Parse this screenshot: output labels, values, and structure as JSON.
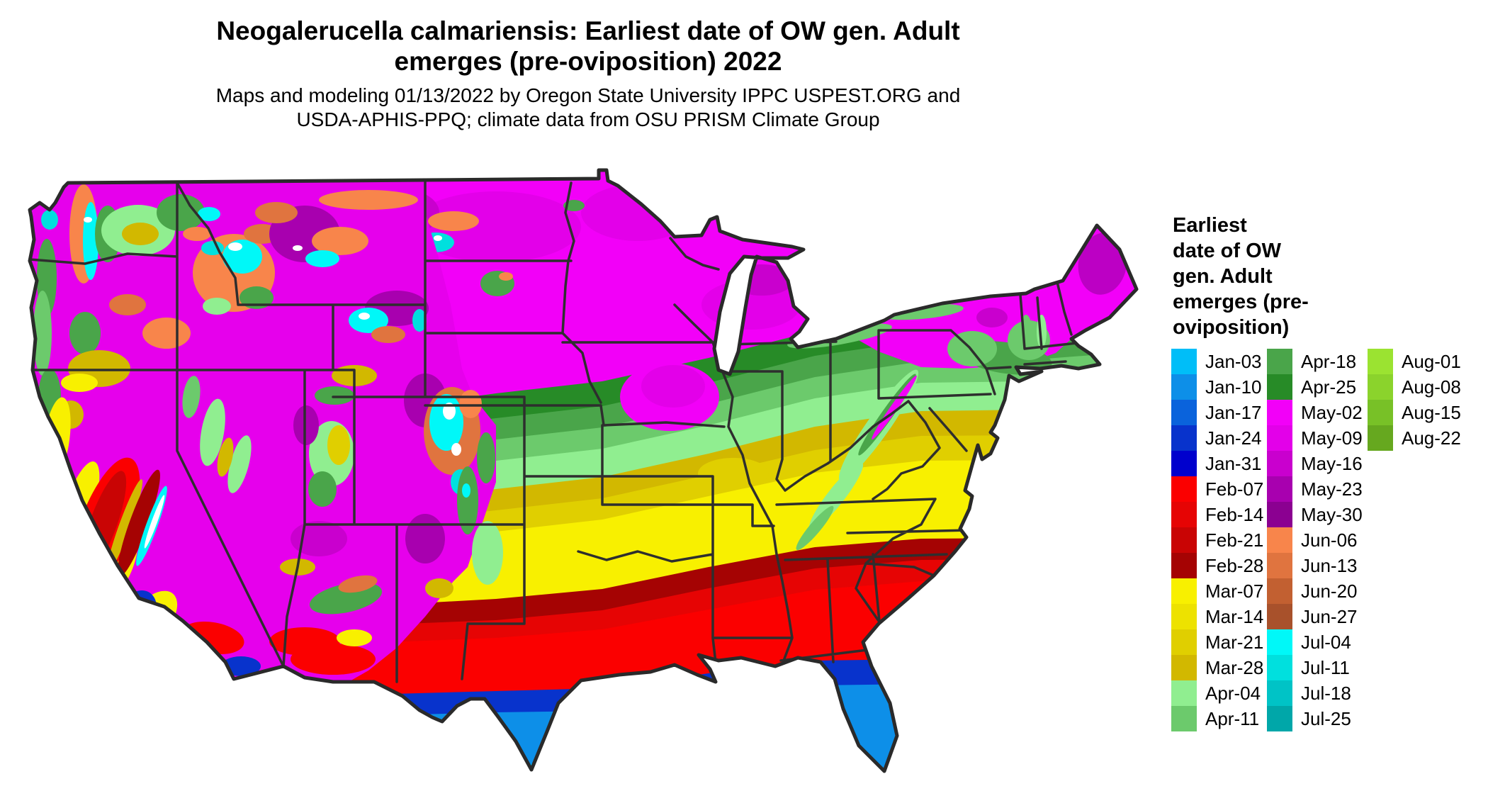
{
  "title": {
    "line1": "Neogalerucella calmariensis: Earliest date of OW gen. Adult",
    "line2": "emerges (pre-oviposition) 2022"
  },
  "subtitle": {
    "line1": "Maps and modeling 01/13/2022 by Oregon State University IPPC USPEST.ORG and",
    "line2": "USDA-APHIS-PPQ; climate data from OSU PRISM Climate Group"
  },
  "legend": {
    "title": "Earliest\ndate of OW\ngen. Adult\nemerges (pre-\noviposition)",
    "columns": [
      [
        {
          "label": "Jan-03",
          "key": "jan03"
        },
        {
          "label": "Jan-10",
          "key": "jan10"
        },
        {
          "label": "Jan-17",
          "key": "jan17"
        },
        {
          "label": "Jan-24",
          "key": "jan24"
        },
        {
          "label": "Jan-31",
          "key": "jan31"
        },
        {
          "label": "Feb-07",
          "key": "feb07"
        },
        {
          "label": "Feb-14",
          "key": "feb14"
        },
        {
          "label": "Feb-21",
          "key": "feb21"
        },
        {
          "label": "Feb-28",
          "key": "feb28"
        },
        {
          "label": "Mar-07",
          "key": "mar07"
        },
        {
          "label": "Mar-14",
          "key": "mar14"
        },
        {
          "label": "Mar-21",
          "key": "mar21"
        },
        {
          "label": "Mar-28",
          "key": "mar28"
        },
        {
          "label": "Apr-04",
          "key": "apr04"
        },
        {
          "label": "Apr-11",
          "key": "apr11"
        }
      ],
      [
        {
          "label": "Apr-18",
          "key": "apr18"
        },
        {
          "label": "Apr-25",
          "key": "apr25"
        },
        {
          "label": "May-02",
          "key": "may02"
        },
        {
          "label": "May-09",
          "key": "may09"
        },
        {
          "label": "May-16",
          "key": "may16"
        },
        {
          "label": "May-23",
          "key": "may23"
        },
        {
          "label": "May-30",
          "key": "may30"
        },
        {
          "label": "Jun-06",
          "key": "jun06"
        },
        {
          "label": "Jun-13",
          "key": "jun13"
        },
        {
          "label": "Jun-20",
          "key": "jun20"
        },
        {
          "label": "Jun-27",
          "key": "jun27"
        },
        {
          "label": "Jul-04",
          "key": "jul04"
        },
        {
          "label": "Jul-11",
          "key": "jul11"
        },
        {
          "label": "Jul-18",
          "key": "jul18"
        },
        {
          "label": "Jul-25",
          "key": "jul25"
        }
      ],
      [
        {
          "label": "Aug-01",
          "key": "aug01"
        },
        {
          "label": "Aug-08",
          "key": "aug08"
        },
        {
          "label": "Aug-15",
          "key": "aug15"
        },
        {
          "label": "Aug-22",
          "key": "aug22"
        }
      ]
    ]
  },
  "palette": {
    "jan03": "#00BEF8",
    "jan10": "#0D8FE8",
    "jan17": "#0A63DC",
    "jan24": "#0833CC",
    "jan31": "#0000CD",
    "feb07": "#FB0000",
    "feb14": "#E60404",
    "feb21": "#C90404",
    "feb28": "#A50303",
    "mar07": "#F8F000",
    "mar14": "#EDE200",
    "mar21": "#E0CF00",
    "mar28": "#D2B800",
    "apr04": "#90EE90",
    "apr11": "#6CCA6C",
    "apr18": "#4AA54A",
    "apr25": "#278B27",
    "may02": "#F200F8",
    "may09": "#E300E9",
    "may16": "#C900CE",
    "may23": "#A800AF",
    "may30": "#8B0091",
    "jun06": "#F8854B",
    "jun13": "#E0743F",
    "jun20": "#C26031",
    "jun27": "#A8512B",
    "jul04": "#00F8F8",
    "jul11": "#00E0DE",
    "jul18": "#00C3C6",
    "jul25": "#00A7A9",
    "aug01": "#9BE331",
    "aug08": "#8BD32C",
    "aug15": "#78C127",
    "aug22": "#66A81F"
  },
  "map_colors": {
    "westbase": "#E600EC",
    "maineP": "#BC00C4",
    "white": "#FFFFFF",
    "state_border": "#2E2E2E"
  },
  "map": {
    "type": "choropleth-raster",
    "region": "Continental United States with state boundaries",
    "gradient_north_to_south": [
      "May-02",
      "Apr-25",
      "Apr-18",
      "Apr-11",
      "Apr-04",
      "Mar-28",
      "Mar-21",
      "Mar-14",
      "Mar-07",
      "Feb-28",
      "Feb-21",
      "Feb-14",
      "Feb-07",
      "Jan-31",
      "Jan-24",
      "Jan-17",
      "Jan-10",
      "Jan-03"
    ],
    "western_features": [
      "Mountain west dominated by May (magenta/purple) dates",
      "June (orange/brown) and July (cyan/teal) patches over Cascades, Rockies, Sierra Nevada",
      "California coast March (yellow), Central Valley February (red), southern valleys January (blue)",
      "South Texas and Florida peninsula January (blue) dates"
    ]
  }
}
